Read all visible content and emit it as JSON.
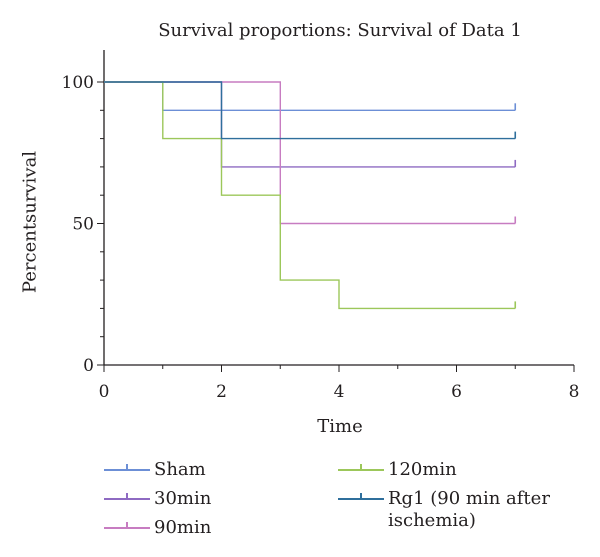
{
  "chart_data": {
    "type": "line",
    "title": "Survival proportions: Survival of Data 1",
    "xlabel": "Time",
    "ylabel": "Percentsurvival",
    "xlim": [
      0,
      8
    ],
    "ylim": [
      0,
      100
    ],
    "x_ticks": [
      "0",
      "2",
      "4",
      "6",
      "8"
    ],
    "y_ticks": [
      "0",
      "50",
      "100"
    ],
    "step": true,
    "grid": false,
    "legend_position": "bottom",
    "series": [
      {
        "name": "Sham",
        "color": "#6c8fd6",
        "points": [
          [
            0,
            100
          ],
          [
            1,
            100
          ],
          [
            1,
            90
          ],
          [
            7,
            90
          ]
        ]
      },
      {
        "name": "30min",
        "color": "#8e6ac2",
        "points": [
          [
            0,
            100
          ],
          [
            2,
            100
          ],
          [
            2,
            70
          ],
          [
            7,
            70
          ]
        ]
      },
      {
        "name": "90min",
        "color": "#c77cc1",
        "points": [
          [
            0,
            100
          ],
          [
            3,
            100
          ],
          [
            3,
            50
          ],
          [
            7,
            50
          ]
        ]
      },
      {
        "name": "120min",
        "color": "#9cc75a",
        "points": [
          [
            0,
            100
          ],
          [
            1,
            100
          ],
          [
            1,
            80
          ],
          [
            2,
            80
          ],
          [
            2,
            60
          ],
          [
            3,
            60
          ],
          [
            3,
            30
          ],
          [
            4,
            30
          ],
          [
            4,
            20
          ],
          [
            7,
            20
          ]
        ]
      },
      {
        "name": "Rg1 (90 min after ischemia)",
        "color": "#2f6f9c",
        "points": [
          [
            0,
            100
          ],
          [
            2,
            100
          ],
          [
            2,
            80
          ],
          [
            7,
            80
          ]
        ]
      }
    ]
  }
}
